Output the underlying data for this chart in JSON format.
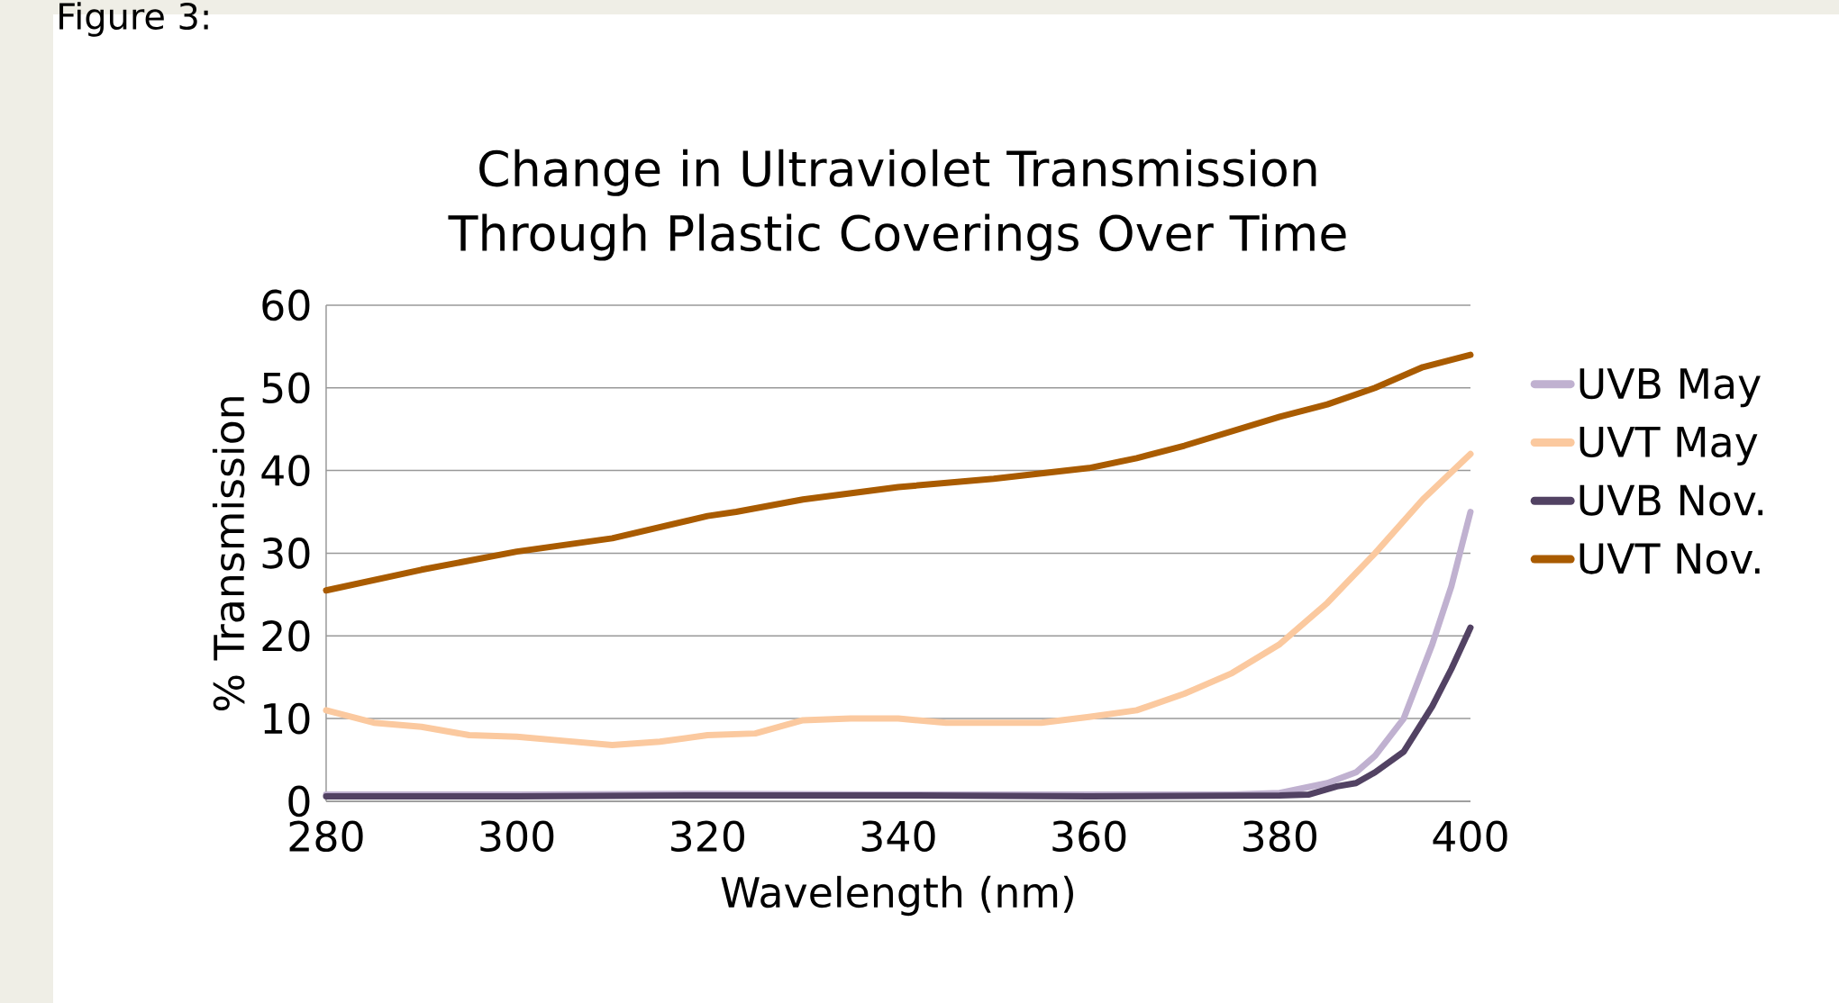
{
  "chart_data": {
    "type": "line",
    "title": "Change in Ultraviolet Transmission Through Plastic Coverings Over Time",
    "xlabel": "Wavelength (nm)",
    "ylabel": "% Transmission",
    "annotations": [
      "Figure 3:"
    ],
    "xlim": [
      280,
      400
    ],
    "xticks": [
      280,
      300,
      320,
      340,
      360,
      380,
      400
    ],
    "ylim": [
      0,
      60
    ],
    "yticks": [
      0,
      10,
      20,
      30,
      40,
      50,
      60
    ],
    "grid": "y",
    "legend": "right",
    "series": [
      {
        "name": "UVB May",
        "color": "#c0b1d0",
        "x": [
          280,
          300,
          320,
          340,
          360,
          375,
          380,
          385,
          388,
          390,
          393,
          396,
          398,
          400
        ],
        "values": [
          0.8,
          0.8,
          0.9,
          0.8,
          0.8,
          0.8,
          1,
          2.2,
          3.5,
          5.5,
          10,
          19,
          26,
          35
        ]
      },
      {
        "name": "UVT May",
        "color": "#fbc99f",
        "x": [
          280,
          285,
          290,
          295,
          300,
          305,
          310,
          315,
          320,
          325,
          330,
          335,
          340,
          345,
          350,
          355,
          360,
          365,
          370,
          375,
          380,
          385,
          390,
          395,
          400
        ],
        "values": [
          11,
          9.5,
          9,
          8,
          7.8,
          7.3,
          6.8,
          7.2,
          8,
          8.2,
          9.8,
          10,
          10,
          9.5,
          9.5,
          9.5,
          10.2,
          11,
          13,
          15.5,
          19,
          24,
          30,
          36.5,
          42
        ]
      },
      {
        "name": "UVB Nov.",
        "color": "#524263",
        "x": [
          280,
          300,
          320,
          340,
          360,
          380,
          383,
          386,
          388,
          390,
          393,
          396,
          398,
          400
        ],
        "values": [
          0.6,
          0.6,
          0.7,
          0.7,
          0.6,
          0.7,
          0.8,
          1.8,
          2.2,
          3.5,
          6,
          11.5,
          16,
          21
        ]
      },
      {
        "name": "UVT Nov.",
        "color": "#a95b00",
        "x": [
          280,
          290,
          300,
          310,
          320,
          323,
          330,
          340,
          350,
          360,
          365,
          370,
          380,
          385,
          390,
          395,
          400
        ],
        "values": [
          25.5,
          28,
          30.2,
          31.8,
          34.5,
          35,
          36.5,
          38,
          39,
          40.3,
          41.5,
          43,
          46.5,
          48,
          50,
          52.5,
          54
        ]
      }
    ]
  }
}
